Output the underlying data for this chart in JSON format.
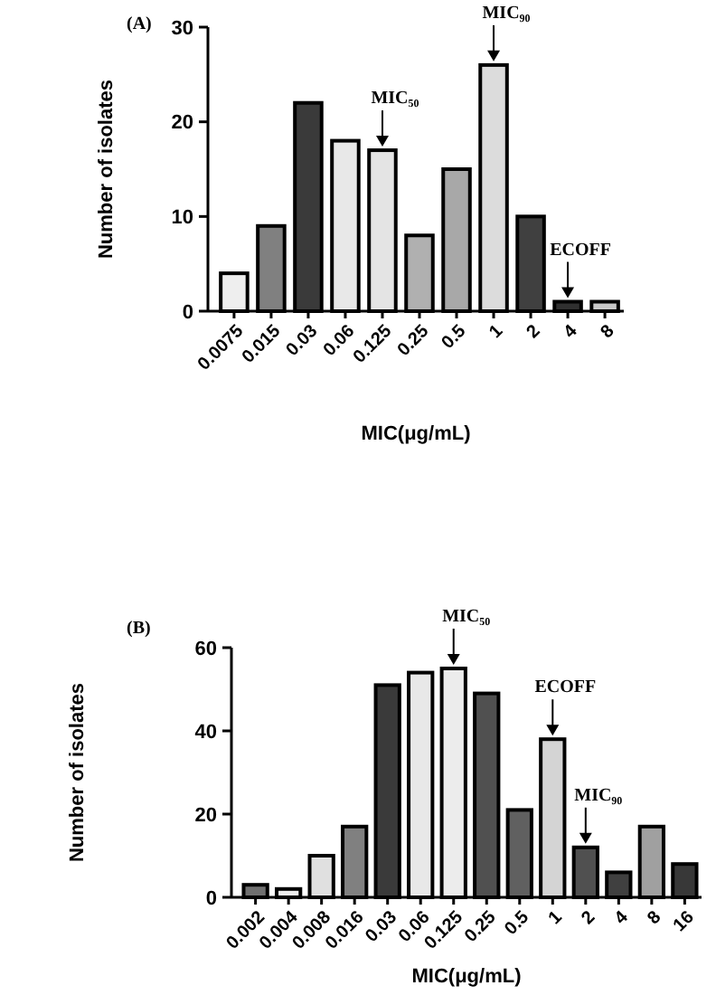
{
  "chart_data": [
    {
      "type": "bar",
      "title": "(A)",
      "xlabel": "MIC(μg/mL)",
      "ylabel": "Number of isolates",
      "categories": [
        "0.0075",
        "0.015",
        "0.03",
        "0.06",
        "0.125",
        "0.25",
        "0.5",
        "1",
        "2",
        "4",
        "8"
      ],
      "values": [
        4,
        9,
        22,
        18,
        17,
        8,
        15,
        26,
        10,
        1,
        1
      ],
      "colors": [
        "#eeeeee",
        "#808080",
        "#3a3a3a",
        "#e8e8e8",
        "#e4e4e4",
        "#b0b0b0",
        "#a8a8a8",
        "#dcdcdc",
        "#404040",
        "#303030",
        "#c8c8c8"
      ],
      "ylim": [
        0,
        30
      ],
      "yticks": [
        0,
        10,
        20,
        30
      ],
      "grid": false,
      "annotations": [
        {
          "text": "MIC₅₀",
          "x": "0.125",
          "y": 17
        },
        {
          "text": "MIC₉₀",
          "x": "1",
          "y": 26
        },
        {
          "text": "ECOFF",
          "x": "4",
          "y": 1
        }
      ]
    },
    {
      "type": "bar",
      "title": "(B)",
      "xlabel": "MIC(μg/mL)",
      "ylabel": "Number of isolates",
      "categories": [
        "0.002",
        "0.004",
        "0.008",
        "0.016",
        "0.03",
        "0.06",
        "0.125",
        "0.25",
        "0.5",
        "1",
        "2",
        "4",
        "8",
        "16"
      ],
      "values": [
        3,
        2,
        10,
        17,
        51,
        54,
        55,
        49,
        21,
        38,
        12,
        6,
        17,
        8
      ],
      "colors": [
        "#707070",
        "#eeeeee",
        "#e0e0e0",
        "#808080",
        "#3a3a3a",
        "#e8e8e8",
        "#ececec",
        "#505050",
        "#606060",
        "#d4d4d4",
        "#505050",
        "#404040",
        "#a0a0a0",
        "#383838"
      ],
      "ylim": [
        0,
        60
      ],
      "yticks": [
        0,
        20,
        40,
        60
      ],
      "grid": false,
      "annotations": [
        {
          "text": "MIC₅₀",
          "x": "0.125",
          "y": 55
        },
        {
          "text": "ECOFF",
          "x": "1",
          "y": 38
        },
        {
          "text": "MIC₉₀",
          "x": "2",
          "y": 12
        }
      ]
    }
  ]
}
